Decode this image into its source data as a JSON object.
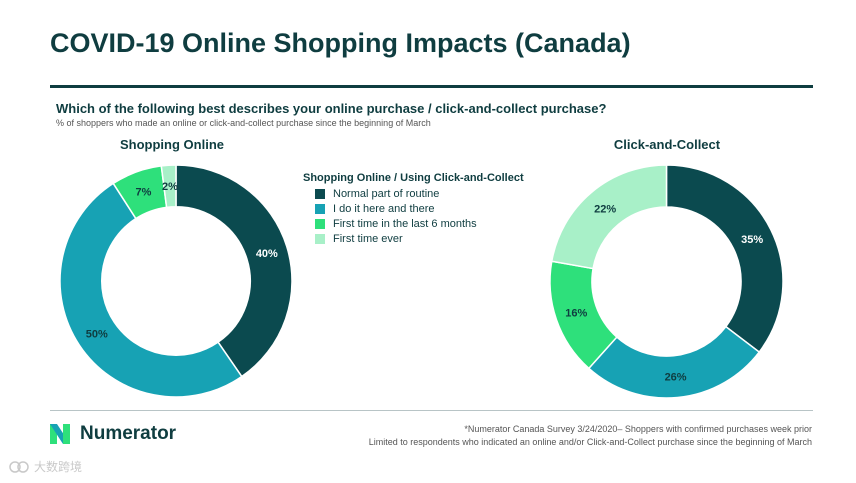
{
  "header": {
    "title": "COVID-19 Online Shopping Impacts (Canada)",
    "question": "Which of the following best describes your online purchase / click-and-collect purchase?",
    "subtitle": "% of shoppers who made an online or click-and-collect purchase since the beginning of March"
  },
  "legend": {
    "title": "Shopping Online / Using Click-and-Collect",
    "items": [
      {
        "label": "Normal part of routine",
        "color": "#0b4a4f"
      },
      {
        "label": "I do it here and there",
        "color": "#17a2b4"
      },
      {
        "label": "First time in the last 6 months",
        "color": "#2ee07b"
      },
      {
        "label": "First time ever",
        "color": "#a8f0c8"
      }
    ]
  },
  "chart_data": [
    {
      "type": "pie",
      "title": "Shopping Online",
      "categories": [
        "Normal part of routine",
        "I do it here and there",
        "First time in the last 6 months",
        "First time ever"
      ],
      "values": [
        40,
        50,
        7,
        2
      ],
      "labels": [
        "40%",
        "50%",
        "7%",
        "2%"
      ],
      "colors": [
        "#0b4a4f",
        "#17a2b4",
        "#2ee07b",
        "#a8f0c8"
      ],
      "donut": true
    },
    {
      "type": "pie",
      "title": "Click-and-Collect",
      "categories": [
        "Normal part of routine",
        "I do it here and there",
        "First time in the last 6 months",
        "First time ever"
      ],
      "values": [
        35,
        26,
        16,
        22
      ],
      "labels": [
        "35%",
        "26%",
        "16%",
        "22%"
      ],
      "colors": [
        "#0b4a4f",
        "#17a2b4",
        "#2ee07b",
        "#a8f0c8"
      ],
      "donut": true
    }
  ],
  "footer": {
    "logo_text": "Numerator",
    "footnote1": "*Numerator Canada Survey 3/24/2020– Shoppers with confirmed purchases week prior",
    "footnote2": "Limited to respondents who indicated an online and/or Click-and-Collect purchase since the beginning of March",
    "watermark_text": "大数跨境"
  }
}
